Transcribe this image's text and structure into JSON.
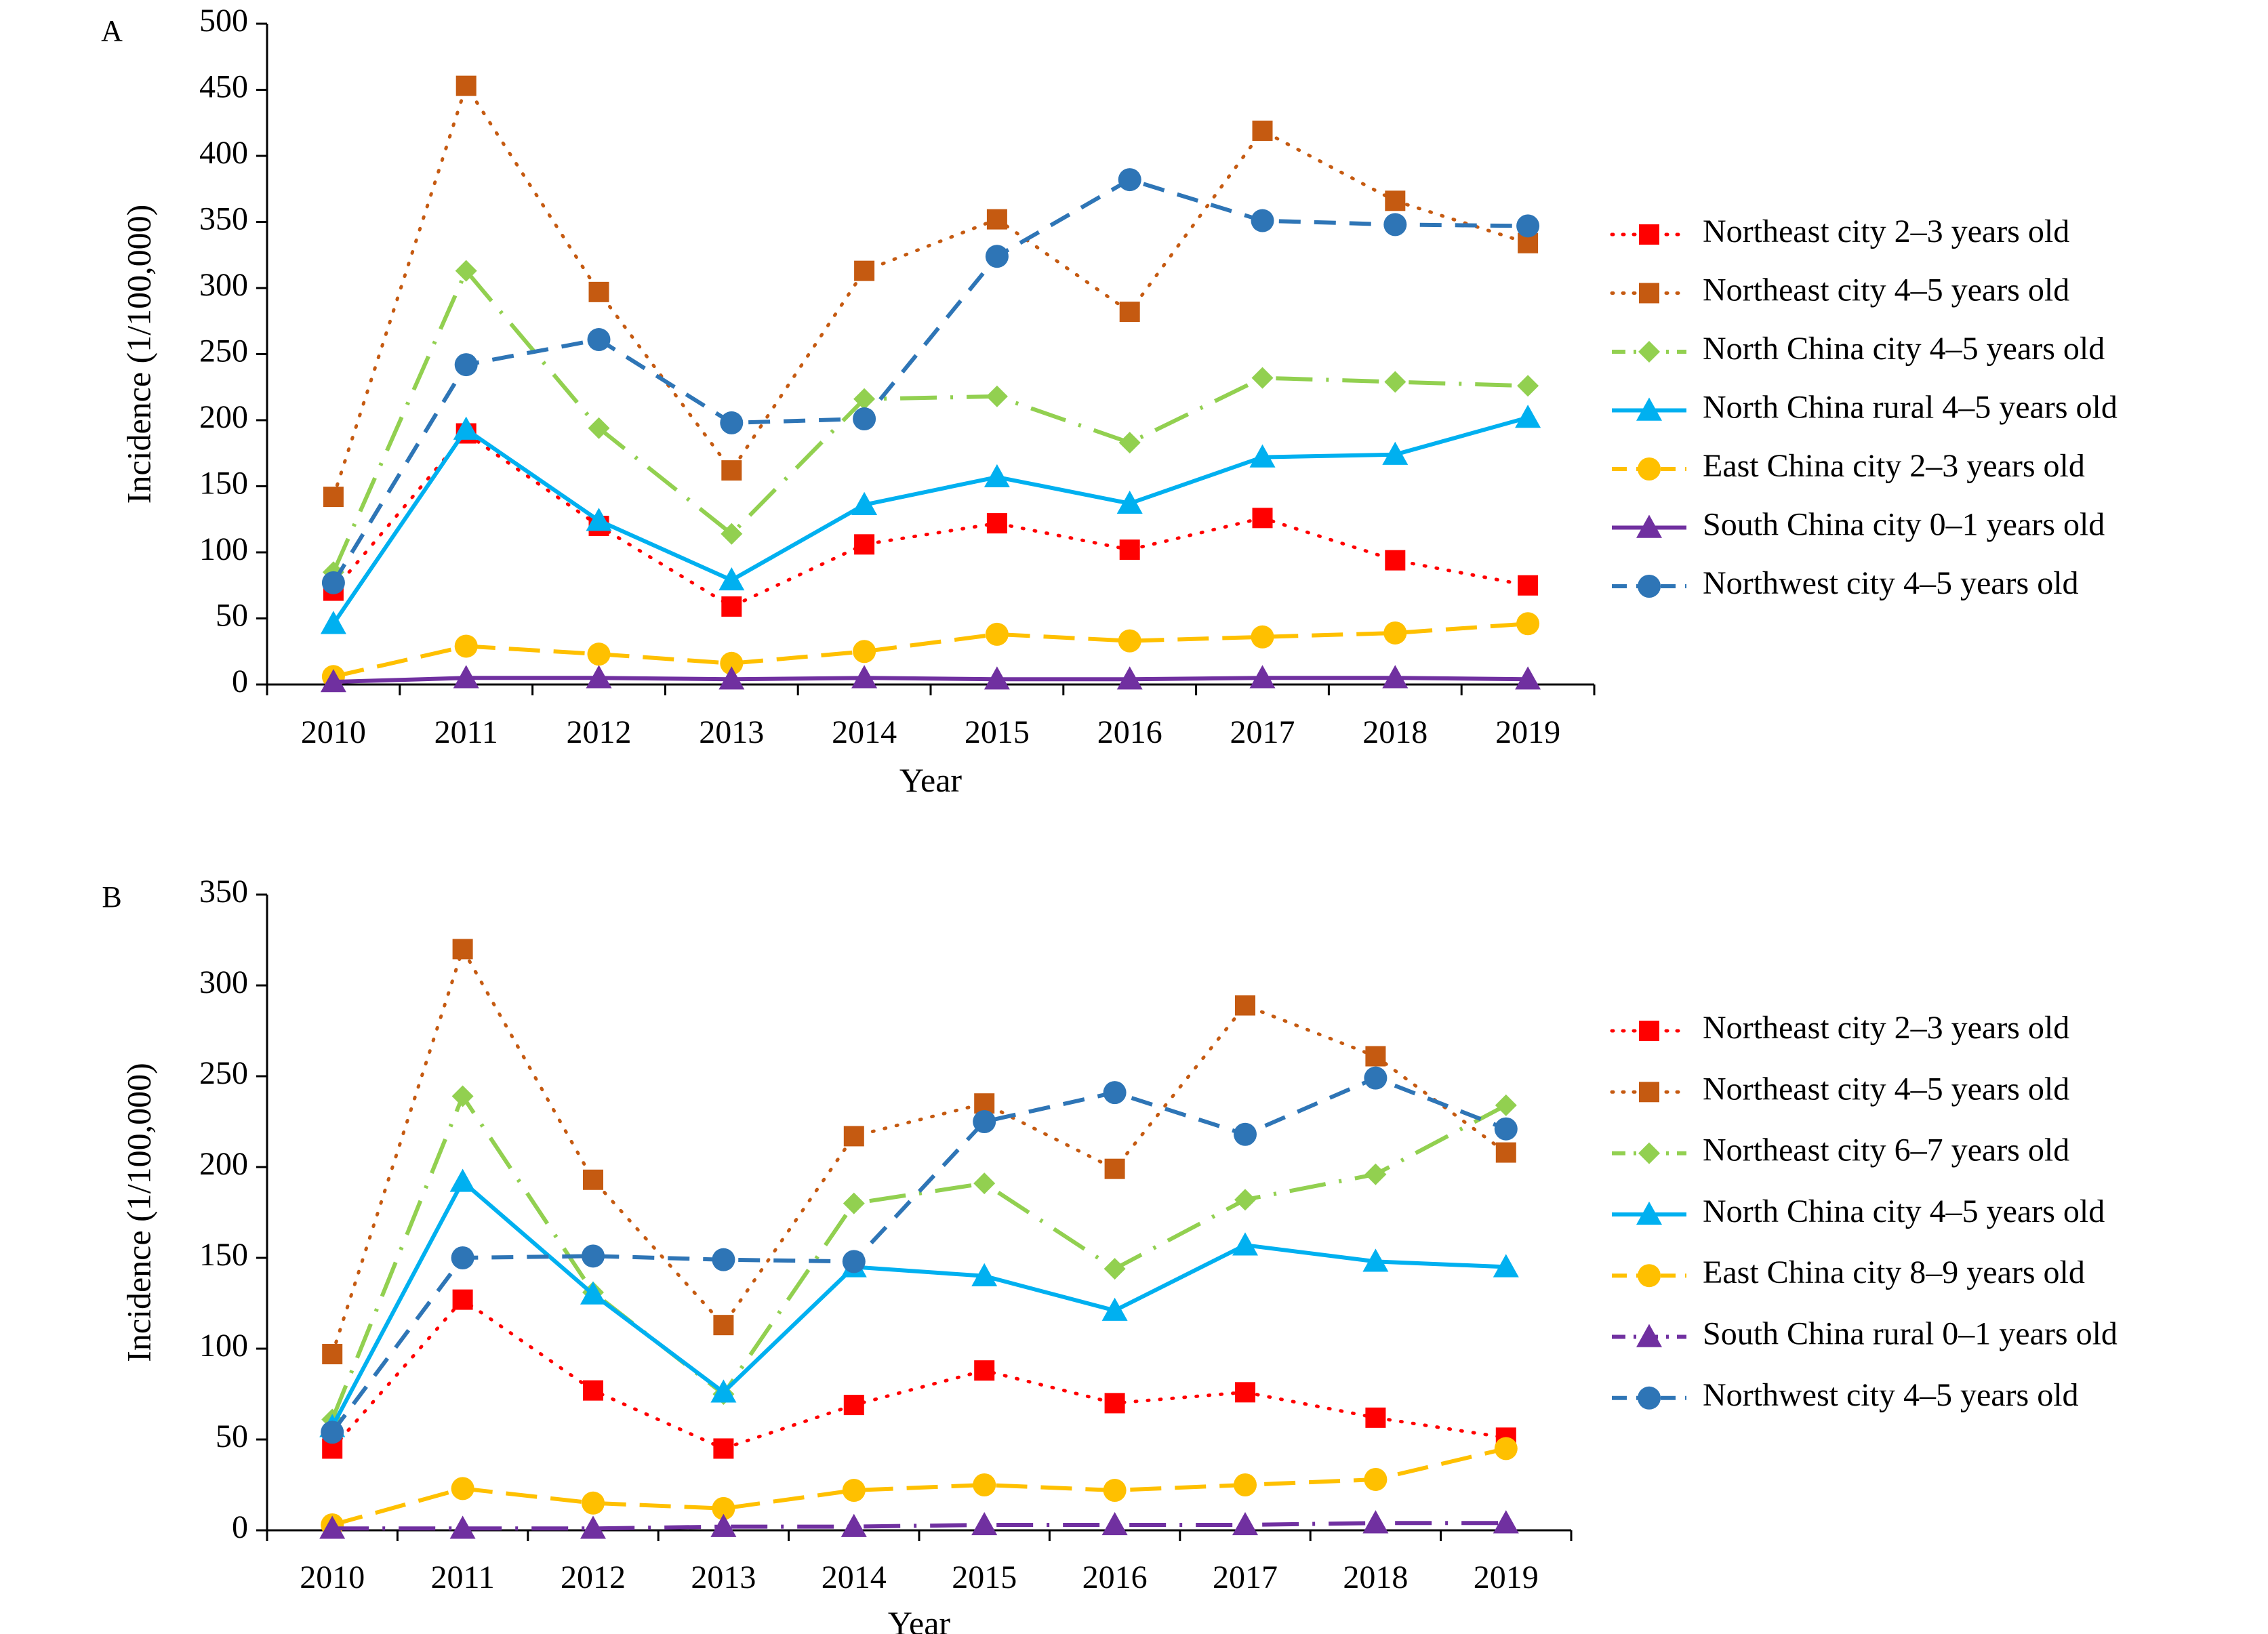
{
  "chart_data": [
    {
      "type": "line",
      "panel_label": "A",
      "xlabel": "Year",
      "ylabel": "Incidence (1/100,000)",
      "ylim": [
        0,
        500
      ],
      "yticks": [
        0,
        50,
        100,
        150,
        200,
        250,
        300,
        350,
        400,
        450,
        500
      ],
      "categories": [
        "2010",
        "2011",
        "2012",
        "2013",
        "2014",
        "2015",
        "2016",
        "2017",
        "2018",
        "2019"
      ],
      "legend_position": "right",
      "grid": false,
      "series": [
        {
          "name": "Northeast city 2–3 years old",
          "color": "#ff0000",
          "marker": "square",
          "dash": "dotted",
          "values": [
            71,
            190,
            120,
            59,
            106,
            122,
            102,
            126,
            94,
            75
          ]
        },
        {
          "name": "Northeast city 4–5 years old",
          "color": "#c55a11",
          "marker": "square",
          "dash": "dotted",
          "values": [
            142,
            453,
            297,
            162,
            313,
            352,
            282,
            419,
            366,
            334
          ]
        },
        {
          "name": "North China city 4–5 years old",
          "color": "#92d050",
          "marker": "diamond",
          "dash": "longdashdot",
          "values": [
            85,
            313,
            194,
            114,
            216,
            218,
            183,
            232,
            229,
            226
          ]
        },
        {
          "name": "North China rural 4–5 years old",
          "color": "#00b0f0",
          "marker": "triangle",
          "dash": "solid",
          "values": [
            46,
            193,
            124,
            79,
            136,
            157,
            137,
            172,
            174,
            202
          ]
        },
        {
          "name": "East China city 2–3 years old",
          "color": "#ffc000",
          "marker": "circle",
          "dash": "longdash",
          "values": [
            6,
            29,
            23,
            16,
            25,
            38,
            33,
            36,
            39,
            46
          ]
        },
        {
          "name": "South China city 0–1 years old",
          "color": "#7030a0",
          "marker": "triangle",
          "dash": "solid",
          "values": [
            2,
            5,
            5,
            4,
            5,
            4,
            4,
            5,
            5,
            4
          ]
        },
        {
          "name": "Northwest city 4–5 years old",
          "color": "#2e75b6",
          "marker": "circle",
          "dash": "dashed",
          "values": [
            77,
            242,
            261,
            198,
            201,
            324,
            382,
            351,
            348,
            347
          ]
        }
      ]
    },
    {
      "type": "line",
      "panel_label": "B",
      "xlabel": "Year",
      "ylabel": "Incidence (1/100,000)",
      "ylim": [
        0,
        350
      ],
      "yticks": [
        0,
        50,
        100,
        150,
        200,
        250,
        300,
        350
      ],
      "categories": [
        "2010",
        "2011",
        "2012",
        "2013",
        "2014",
        "2015",
        "2016",
        "2017",
        "2018",
        "2019"
      ],
      "legend_position": "right",
      "grid": false,
      "series": [
        {
          "name": "Northeast city 2–3 years old",
          "color": "#ff0000",
          "marker": "square",
          "dash": "dotted",
          "values": [
            45,
            127,
            77,
            45,
            69,
            88,
            70,
            76,
            62,
            51
          ]
        },
        {
          "name": "Northeast city 4–5 years old",
          "color": "#c55a11",
          "marker": "square",
          "dash": "dotted",
          "values": [
            97,
            320,
            193,
            113,
            217,
            235,
            199,
            289,
            261,
            208
          ]
        },
        {
          "name": "Northeast city 6–7 years old",
          "color": "#92d050",
          "marker": "diamond",
          "dash": "longdashdot",
          "values": [
            61,
            239,
            131,
            75,
            180,
            191,
            144,
            182,
            196,
            234
          ]
        },
        {
          "name": "North China city 4–5 years old",
          "color": "#00b0f0",
          "marker": "triangle",
          "dash": "solid",
          "values": [
            57,
            192,
            130,
            76,
            145,
            140,
            121,
            157,
            148,
            145
          ]
        },
        {
          "name": "East China city 8–9 years old",
          "color": "#ffc000",
          "marker": "circle",
          "dash": "longdash",
          "values": [
            3,
            23,
            15,
            12,
            22,
            25,
            22,
            25,
            28,
            45
          ]
        },
        {
          "name": "South China rural 0–1 years old",
          "color": "#7030a0",
          "marker": "triangle",
          "dash": "longdashdot",
          "values": [
            1,
            1,
            1,
            2,
            2,
            3,
            3,
            3,
            4,
            4
          ]
        },
        {
          "name": "Northwest city 4–5 years old",
          "color": "#2e75b6",
          "marker": "circle",
          "dash": "dashed",
          "values": [
            54,
            150,
            151,
            149,
            148,
            225,
            241,
            218,
            249,
            221
          ]
        }
      ]
    }
  ]
}
